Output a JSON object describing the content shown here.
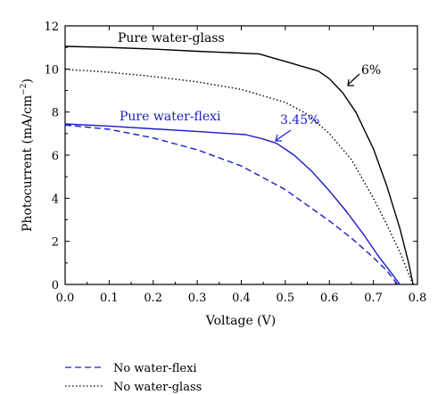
{
  "chart_data": {
    "type": "line",
    "title": "",
    "xlabel": "Voltage (V)",
    "ylabel_main": "Photocurrent (mA/cm",
    "ylabel_sup": "−2",
    "ylabel_end": ")",
    "xlim": [
      0.0,
      0.8
    ],
    "ylim": [
      0,
      12
    ],
    "x_ticks": [
      "0.0",
      "0.1",
      "0.2",
      "0.3",
      "0.4",
      "0.5",
      "0.6",
      "0.7",
      "0.8"
    ],
    "y_ticks": [
      "0",
      "2",
      "4",
      "6",
      "8",
      "10",
      "12"
    ],
    "grid": false,
    "series": [
      {
        "name": "Pure water-glass",
        "color": "#000000",
        "style": "solid",
        "x": [
          0.0,
          0.1,
          0.2,
          0.3,
          0.44,
          0.5,
          0.575,
          0.6,
          0.63,
          0.66,
          0.7,
          0.73,
          0.76,
          0.78,
          0.79
        ],
        "y": [
          11.05,
          11.0,
          10.92,
          10.82,
          10.7,
          10.35,
          9.9,
          9.55,
          8.9,
          8.0,
          6.3,
          4.6,
          2.6,
          1.0,
          0
        ]
      },
      {
        "name": "No water-glass",
        "color": "#000000",
        "style": "dotted",
        "x": [
          0.0,
          0.1,
          0.2,
          0.3,
          0.4,
          0.5,
          0.55,
          0.6,
          0.65,
          0.7,
          0.73,
          0.76,
          0.78,
          0.79
        ],
        "y": [
          9.98,
          9.85,
          9.65,
          9.4,
          9.05,
          8.45,
          7.9,
          7.0,
          5.8,
          4.0,
          2.8,
          1.5,
          0.5,
          0
        ]
      },
      {
        "name": "Pure water-flexi",
        "color": "#1b1bc8",
        "style": "solid",
        "x": [
          0.0,
          0.1,
          0.2,
          0.3,
          0.41,
          0.45,
          0.48,
          0.52,
          0.56,
          0.6,
          0.64,
          0.68,
          0.71,
          0.74,
          0.76
        ],
        "y": [
          7.45,
          7.35,
          7.22,
          7.1,
          6.95,
          6.75,
          6.55,
          6.0,
          5.25,
          4.35,
          3.35,
          2.25,
          1.35,
          0.55,
          0
        ]
      },
      {
        "name": "No water-flexi",
        "color": "#1b1bc8",
        "style": "dashed",
        "x": [
          0.0,
          0.1,
          0.2,
          0.3,
          0.4,
          0.5,
          0.6,
          0.65,
          0.7,
          0.73,
          0.755
        ],
        "y": [
          7.4,
          7.2,
          6.8,
          6.25,
          5.5,
          4.4,
          2.95,
          2.15,
          1.25,
          0.65,
          0
        ]
      }
    ],
    "annotations": [
      {
        "text": "Pure water-glass",
        "color": "#000000"
      },
      {
        "text": "6%",
        "color": "#000000"
      },
      {
        "text": "Pure water-flexi",
        "color": "#1b1bc8"
      },
      {
        "text": "3.45%",
        "color": "#1b1bc8"
      }
    ],
    "legend": {
      "placement": "bottom-left",
      "entries": [
        {
          "label": "No water-flexi",
          "series": "No water-flexi"
        },
        {
          "label": "No water-glass",
          "series": "No water-glass"
        }
      ]
    }
  }
}
